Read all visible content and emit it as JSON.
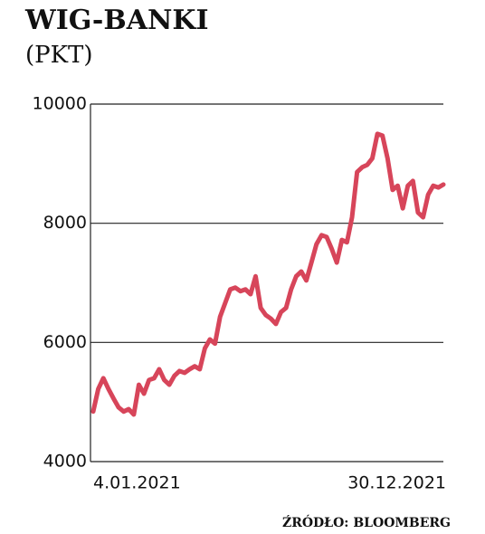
{
  "chart_data": {
    "type": "line",
    "title": "WIG-BANKI",
    "subtitle": "(PKT)",
    "source": "ŹRÓDŁO: BLOOMBERG",
    "categories": [
      "4.01.2021",
      null,
      null,
      null,
      null,
      null,
      null,
      null,
      null,
      null,
      null,
      null,
      null,
      null,
      null,
      null,
      null,
      null,
      null,
      null,
      null,
      null,
      null,
      null,
      null,
      null,
      null,
      null,
      null,
      null,
      null,
      null,
      null,
      null,
      null,
      null,
      null,
      null,
      null,
      null,
      null,
      null,
      null,
      null,
      null,
      null,
      null,
      null,
      null,
      null,
      null,
      null,
      null,
      null,
      null,
      null,
      null,
      null,
      null,
      null,
      null,
      null,
      null,
      null,
      null,
      null,
      null,
      null,
      null,
      "30.12.2021"
    ],
    "series": [
      {
        "name": "WIG-BANKI",
        "color": "#d7455a",
        "values": [
          4840,
          5220,
          5400,
          5220,
          5060,
          4910,
          4840,
          4880,
          4790,
          5290,
          5140,
          5370,
          5400,
          5550,
          5370,
          5290,
          5440,
          5520,
          5490,
          5550,
          5600,
          5550,
          5900,
          6050,
          5980,
          6430,
          6660,
          6890,
          6920,
          6860,
          6890,
          6810,
          7110,
          6580,
          6460,
          6400,
          6310,
          6510,
          6580,
          6890,
          7110,
          7190,
          7040,
          7340,
          7650,
          7800,
          7770,
          7570,
          7340,
          7720,
          7680,
          8100,
          8860,
          8940,
          8980,
          9090,
          9500,
          9470,
          9090,
          8560,
          8630,
          8250,
          8630,
          8710,
          8180,
          8100,
          8480,
          8630,
          8600,
          8650
        ]
      }
    ],
    "ylim": [
      4000,
      10000
    ],
    "yticks": [
      4000,
      6000,
      8000,
      10000
    ],
    "grid": true
  }
}
